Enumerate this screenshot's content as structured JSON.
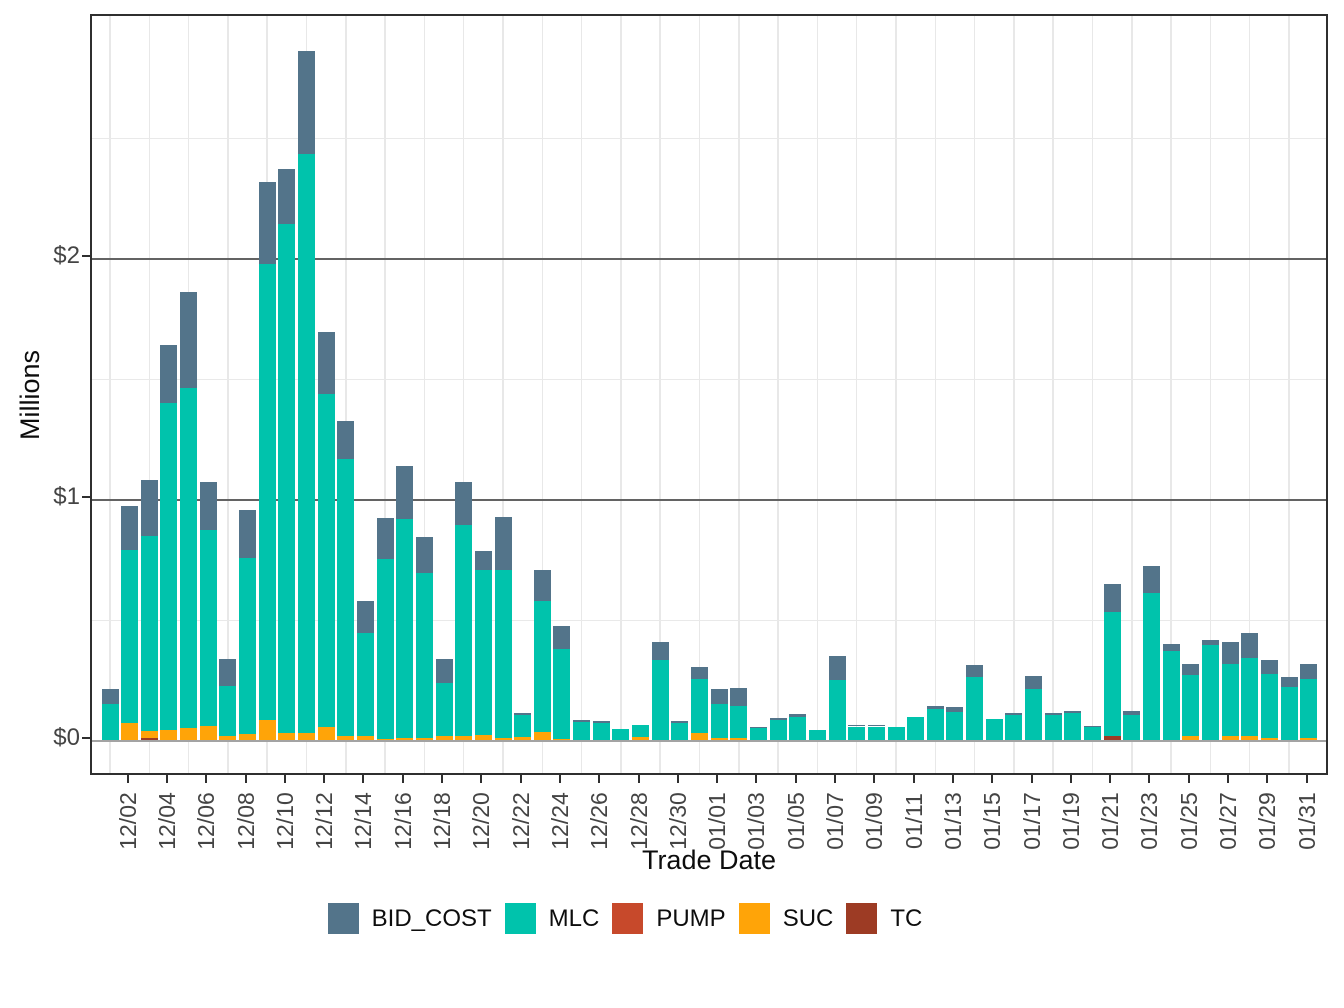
{
  "chart_data": {
    "type": "bar",
    "stacked": true,
    "title": "",
    "xlabel": "Trade Date",
    "ylabel": "Millions",
    "value_unit": "millions of dollars",
    "ylim": [
      0,
      3
    ],
    "grid": true,
    "legend_position": "bottom",
    "y_ticks": [
      {
        "label": "$0",
        "value": 0
      },
      {
        "label": "$1",
        "value": 1
      },
      {
        "label": "$2",
        "value": 2
      }
    ],
    "y_minor_ticks": [
      0.5,
      1.5,
      2.5
    ],
    "categories": [
      "12/01",
      "12/02",
      "12/03",
      "12/04",
      "12/05",
      "12/06",
      "12/07",
      "12/08",
      "12/09",
      "12/10",
      "12/11",
      "12/12",
      "12/13",
      "12/14",
      "12/15",
      "12/16",
      "12/17",
      "12/18",
      "12/19",
      "12/20",
      "12/21",
      "12/22",
      "12/23",
      "12/24",
      "12/25",
      "12/26",
      "12/27",
      "12/28",
      "12/29",
      "12/30",
      "12/31",
      "01/01",
      "01/02",
      "01/03",
      "01/04",
      "01/05",
      "01/06",
      "01/07",
      "01/08",
      "01/09",
      "01/10",
      "01/11",
      "01/12",
      "01/13",
      "01/14",
      "01/15",
      "01/16",
      "01/17",
      "01/18",
      "01/19",
      "01/20",
      "01/21",
      "01/22",
      "01/23",
      "01/24",
      "01/25",
      "01/26",
      "01/27",
      "01/28",
      "01/29",
      "01/30",
      "01/31"
    ],
    "x_tick_labels": [
      "12/02",
      "12/04",
      "12/06",
      "12/08",
      "12/10",
      "12/12",
      "12/14",
      "12/16",
      "12/18",
      "12/20",
      "12/22",
      "12/24",
      "12/26",
      "12/28",
      "12/30",
      "01/01",
      "01/03",
      "01/05",
      "01/07",
      "01/09",
      "01/11",
      "01/13",
      "01/15",
      "01/17",
      "01/19",
      "01/21",
      "01/23",
      "01/25",
      "01/27",
      "01/29",
      "01/31"
    ],
    "stack_order_bottom_to_top": [
      "TC",
      "SUC",
      "PUMP",
      "MLC",
      "BID_COST"
    ],
    "series": [
      {
        "name": "BID_COST",
        "color": "#53748A",
        "values": [
          0.06,
          0.18,
          0.23,
          0.24,
          0.4,
          0.2,
          0.11,
          0.2,
          0.34,
          0.23,
          0.43,
          0.26,
          0.16,
          0.13,
          0.17,
          0.22,
          0.15,
          0.1,
          0.18,
          0.08,
          0.22,
          0.012,
          0.13,
          0.095,
          0.008,
          0.007,
          0,
          0,
          0.077,
          0.005,
          0.05,
          0.064,
          0.072,
          0.007,
          0.008,
          0.01,
          0,
          0.1,
          0.006,
          0.006,
          0,
          0,
          0.01,
          0.021,
          0.05,
          0,
          0.01,
          0.056,
          0.007,
          0.009,
          0.007,
          0.116,
          0.016,
          0.113,
          0.03,
          0.047,
          0.019,
          0.092,
          0.104,
          0.057,
          0.04,
          0.062
        ]
      },
      {
        "name": "MLC",
        "color": "#00C3AC",
        "values": [
          0.15,
          0.72,
          0.81,
          1.36,
          1.41,
          0.81,
          0.21,
          0.73,
          1.89,
          2.11,
          2.4,
          1.38,
          1.15,
          0.43,
          0.745,
          0.91,
          0.685,
          0.22,
          0.875,
          0.685,
          0.7,
          0.09,
          0.545,
          0.375,
          0.075,
          0.07,
          0.046,
          0.053,
          0.33,
          0.072,
          0.225,
          0.14,
          0.134,
          0.048,
          0.085,
          0.097,
          0.04,
          0.25,
          0.056,
          0.056,
          0.053,
          0.095,
          0.13,
          0.115,
          0.26,
          0.088,
          0.102,
          0.21,
          0.104,
          0.113,
          0.053,
          0.515,
          0.104,
          0.61,
          0.368,
          0.255,
          0.396,
          0.297,
          0.322,
          0.267,
          0.221,
          0.242
        ]
      },
      {
        "name": "PUMP",
        "color": "#C7492B",
        "values": [
          0,
          0,
          0,
          0,
          0,
          0,
          0,
          0,
          0,
          0,
          0,
          0,
          0,
          0,
          0,
          0,
          0,
          0,
          0,
          0,
          0,
          0,
          0,
          0,
          0,
          0,
          0,
          0,
          0,
          0,
          0,
          0,
          0,
          0,
          0,
          0,
          0,
          0,
          0,
          0,
          0,
          0,
          0,
          0,
          0,
          0,
          0,
          0,
          0,
          0,
          0,
          0,
          0,
          0,
          0,
          0,
          0,
          0,
          0,
          0,
          0,
          0
        ]
      },
      {
        "name": "SUC",
        "color": "#FFA408",
        "values": [
          0,
          0.07,
          0.03,
          0.04,
          0.05,
          0.06,
          0.015,
          0.025,
          0.085,
          0.03,
          0.03,
          0.055,
          0.015,
          0.015,
          0.005,
          0.007,
          0.007,
          0.018,
          0.017,
          0.019,
          0.007,
          0.012,
          0.032,
          0.004,
          0,
          0,
          0,
          0.011,
          0,
          0,
          0.028,
          0.008,
          0.008,
          0,
          0,
          0,
          0,
          0,
          0,
          0,
          0,
          0,
          0,
          0,
          0,
          0,
          0,
          0,
          0,
          0,
          0,
          0,
          0,
          0,
          0,
          0.015,
          0,
          0.018,
          0.017,
          0.008,
          0,
          0.01
        ]
      },
      {
        "name": "TC",
        "color": "#9D3B24",
        "values": [
          0,
          0,
          0.008,
          0,
          0,
          0,
          0,
          0,
          0,
          0,
          0,
          0,
          0,
          0,
          0,
          0,
          0,
          0,
          0,
          0,
          0,
          0,
          0,
          0,
          0,
          0,
          0,
          0,
          0,
          0,
          0,
          0,
          0,
          0,
          0,
          0,
          0,
          0,
          0,
          0,
          0,
          0,
          0,
          0,
          0,
          0,
          0,
          0,
          0,
          0,
          0,
          0.017,
          0,
          0,
          0,
          0,
          0,
          0,
          0,
          0,
          0,
          0
        ]
      }
    ],
    "legend": [
      {
        "label": "BID_COST",
        "color": "#53748A"
      },
      {
        "label": "MLC",
        "color": "#00C3AC"
      },
      {
        "label": "PUMP",
        "color": "#C7492B"
      },
      {
        "label": "SUC",
        "color": "#FFA408"
      },
      {
        "label": "TC",
        "color": "#9D3B24"
      }
    ]
  }
}
